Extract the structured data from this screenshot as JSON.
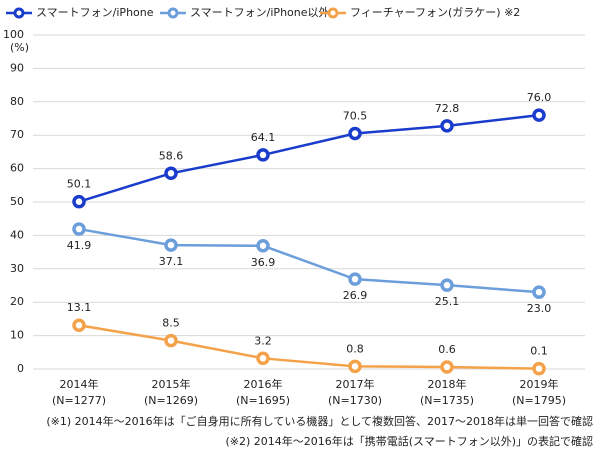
{
  "chart_data": {
    "type": "line",
    "ylabel": "(%)",
    "categories": [
      "2014年",
      "2015年",
      "2016年",
      "2017年",
      "2018年",
      "2019年"
    ],
    "sample_sizes": [
      "(N=1277)",
      "(N=1269)",
      "(N=1695)",
      "(N=1730)",
      "(N=1735)",
      "(N=1795)"
    ],
    "series": [
      {
        "name": "スマートフォン/iPhone",
        "color": "#1a3ccc",
        "label_side": "above",
        "values": [
          50.1,
          58.6,
          64.1,
          70.5,
          72.8,
          76.0
        ],
        "value_labels": [
          "50.1",
          "58.6",
          "64.1",
          "70.5",
          "72.8",
          "76.0"
        ]
      },
      {
        "name": "スマートフォン/iPhone以外",
        "color": "#6c9edb",
        "label_side": "below",
        "values": [
          41.9,
          37.1,
          36.9,
          26.9,
          25.1,
          23.0
        ],
        "value_labels": [
          "41.9",
          "37.1",
          "36.9",
          "26.9",
          "25.1",
          "23.0"
        ]
      },
      {
        "name": "フィーチャーフォン(ガラケー) ※2",
        "color": "#f4a24a",
        "label_side": "above",
        "values": [
          13.1,
          8.5,
          3.2,
          0.8,
          0.6,
          0.1
        ],
        "value_labels": [
          "13.1",
          "8.5",
          "3.2",
          "0.8",
          "0.6",
          "0.1"
        ]
      }
    ],
    "ylim": [
      0,
      100
    ],
    "yticks": [
      0,
      10,
      20,
      30,
      40,
      50,
      60,
      70,
      80,
      90,
      100
    ],
    "grid": true,
    "footnotes": [
      "(※1) 2014年～2016年は「ご自身用に所有している機器」として複数回答、2017～2018年は単一回答で確認",
      "(※2) 2014年～2016年は「携帯電話(スマートフォン以外)」の表記で確認"
    ]
  }
}
